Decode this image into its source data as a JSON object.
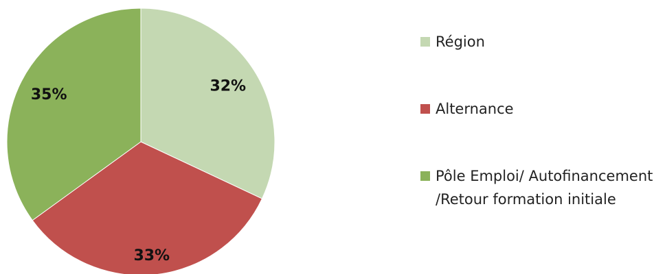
{
  "chart_data": {
    "type": "pie",
    "categories": [
      "Région",
      "Alternance",
      "Pôle Emploi/ Autofinancement /Retour formation initiale"
    ],
    "values": [
      32,
      33,
      35
    ],
    "value_labels": [
      "32%",
      "33%",
      "35%"
    ],
    "colors": [
      "#c4d8b2",
      "#c0504d",
      "#8bb25a"
    ],
    "legend": "right"
  }
}
